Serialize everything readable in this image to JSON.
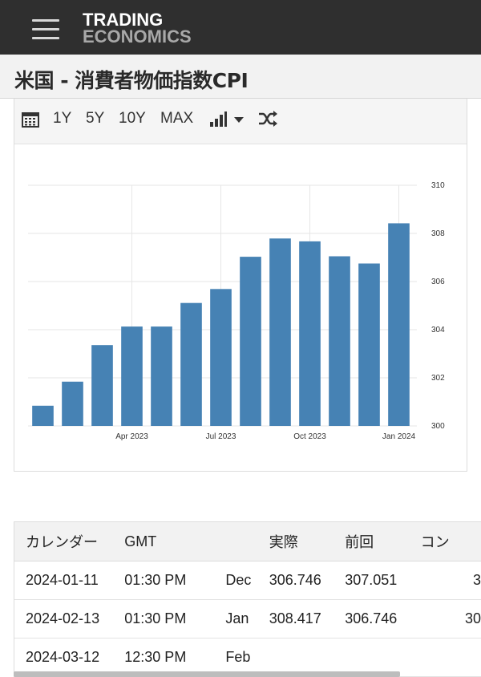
{
  "header": {
    "logo_line1": "TRADING",
    "logo_line2": "ECONOMICS",
    "menu_icon": "hamburger-icon"
  },
  "page": {
    "title": "米国 - 消費者物価指数CPI"
  },
  "toolbar": {
    "calendar_icon": "calendar-icon",
    "ranges": [
      "1Y",
      "5Y",
      "10Y",
      "MAX"
    ],
    "chart_type_icon": "bar-chart-icon",
    "dropdown_icon": "caret-down-icon",
    "compare_icon": "shuffle-icon"
  },
  "chart_data": {
    "type": "bar",
    "categories": [
      "2023-01",
      "2023-02",
      "2023-03",
      "2023-04",
      "2023-05",
      "2023-06",
      "2023-07",
      "2023-08",
      "2023-09",
      "2023-10",
      "2023-11",
      "2023-12",
      "2024-01"
    ],
    "values": [
      300.84,
      301.84,
      303.36,
      304.13,
      304.13,
      305.11,
      305.69,
      307.03,
      307.79,
      307.67,
      307.05,
      306.75,
      308.42
    ],
    "x_tick_labels": [
      {
        "category": "2023-04",
        "label": "Apr 2023"
      },
      {
        "category": "2023-07",
        "label": "Jul 2023"
      },
      {
        "category": "2023-10",
        "label": "Oct 2023"
      },
      {
        "category": "2024-01",
        "label": "Jan 2024"
      }
    ],
    "y_ticks": [
      300,
      302,
      304,
      306,
      308,
      310
    ],
    "ylim": [
      300,
      310
    ],
    "y_axis_position": "right",
    "grid": true,
    "bar_color": "#4682b4",
    "title": "",
    "xlabel": "",
    "ylabel": ""
  },
  "table": {
    "headers": [
      "カレンダー",
      "GMT",
      "",
      "実際",
      "前回",
      "コン"
    ],
    "rows": [
      {
        "date": "2024-01-11",
        "time": "01:30 PM",
        "ref": "Dec",
        "actual": "306.746",
        "previous": "307.051",
        "consensus": "3"
      },
      {
        "date": "2024-02-13",
        "time": "01:30 PM",
        "ref": "Jan",
        "actual": "308.417",
        "previous": "306.746",
        "consensus": "30"
      },
      {
        "date": "2024-03-12",
        "time": "12:30 PM",
        "ref": "Feb",
        "actual": "",
        "previous": "",
        "consensus": ""
      }
    ]
  }
}
